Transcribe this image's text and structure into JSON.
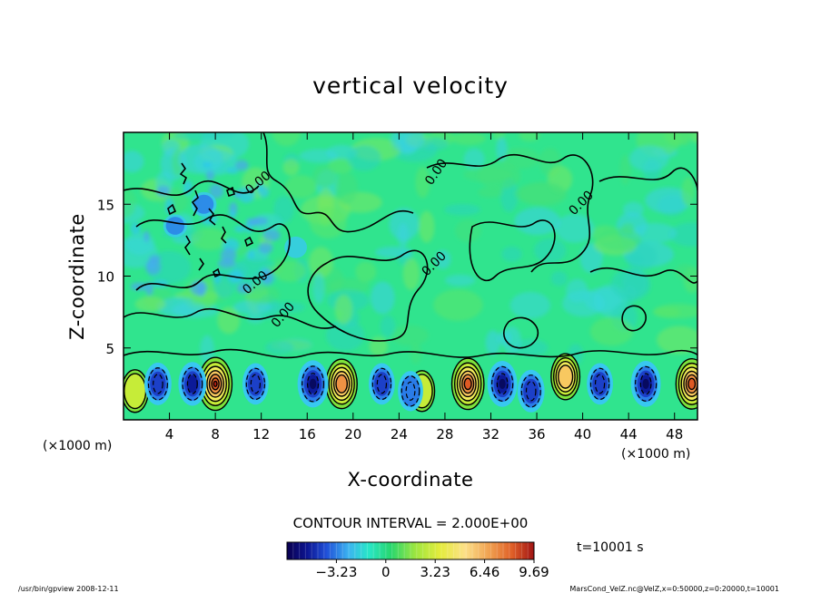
{
  "chart_data": {
    "type": "heatmap",
    "title": "vertical velocity",
    "xlabel": "X-coordinate",
    "ylabel": "Z-coordinate",
    "x_unit_left": "(×1000 m)",
    "x_unit_right": "(×1000 m)",
    "xlim": [
      0,
      50
    ],
    "ylim": [
      0,
      20
    ],
    "x_ticks": [
      4,
      8,
      12,
      16,
      20,
      24,
      28,
      32,
      36,
      40,
      44,
      48
    ],
    "y_ticks": [
      5,
      10,
      15
    ],
    "contour_interval_text": "CONTOUR INTERVAL = 2.000E+00",
    "time_text": "t=10001  s",
    "colorbar": {
      "range": [
        -6.46,
        9.69
      ],
      "tick_values": [
        -3.23,
        0,
        3.23,
        6.46,
        9.69
      ],
      "tick_labels": [
        "−3.23",
        "0",
        "3.23",
        "6.46",
        "9.69"
      ]
    },
    "contour_labels": [
      "0.00",
      "0.00",
      "0.00",
      "0.00",
      "0.00",
      "0.00"
    ],
    "updraft_cells": [
      {
        "x": 8.0,
        "z": 2.5,
        "w": 9.0
      },
      {
        "x": 19.0,
        "z": 2.5,
        "w": 7.0
      },
      {
        "x": 30.0,
        "z": 2.5,
        "w": 8.0
      },
      {
        "x": 38.5,
        "z": 3.0,
        "w": 5.0
      },
      {
        "x": 49.5,
        "z": 2.5,
        "w": 7.5
      },
      {
        "x": 1.0,
        "z": 2.0,
        "w": 3.0
      },
      {
        "x": 26.0,
        "z": 2.0,
        "w": 2.0
      }
    ],
    "downdraft_cells": [
      {
        "x": 3.0,
        "z": 2.5,
        "w": -3.5
      },
      {
        "x": 6.0,
        "z": 2.5,
        "w": -4.0
      },
      {
        "x": 11.5,
        "z": 2.5,
        "w": -3.0
      },
      {
        "x": 16.5,
        "z": 2.5,
        "w": -5.5
      },
      {
        "x": 22.5,
        "z": 2.5,
        "w": -3.0
      },
      {
        "x": 25.0,
        "z": 2.0,
        "w": -2.5
      },
      {
        "x": 33.0,
        "z": 2.5,
        "w": -5.0
      },
      {
        "x": 35.5,
        "z": 2.0,
        "w": -3.5
      },
      {
        "x": 41.5,
        "z": 2.5,
        "w": -3.0
      },
      {
        "x": 45.5,
        "z": 2.5,
        "w": -5.0
      },
      {
        "x": 7.0,
        "z": 15.0,
        "w": -2.5
      },
      {
        "x": 4.5,
        "z": 13.5,
        "w": -2.0
      },
      {
        "x": 15.0,
        "z": 12.0,
        "w": -1.5
      }
    ]
  },
  "footer": {
    "left": "/usr/bin/gpview   2008-12-11",
    "right": "MarsCond_VelZ.nc@VelZ,x=0:50000,z=0:20000,t=10001"
  }
}
